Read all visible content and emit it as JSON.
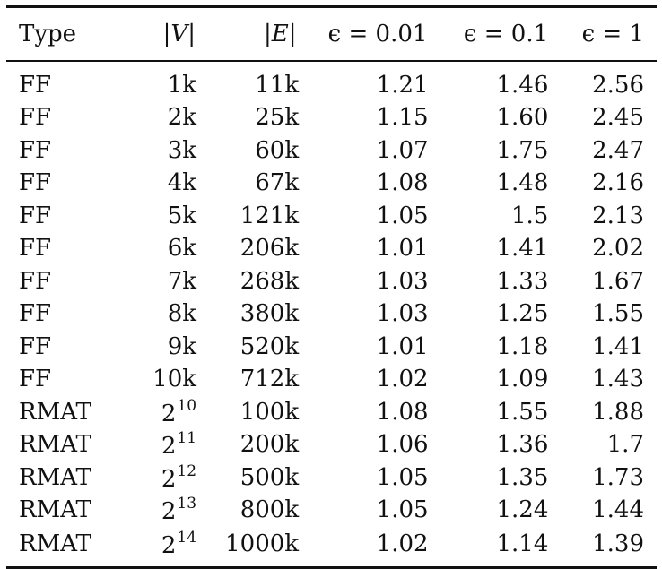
{
  "table": {
    "headers": {
      "type": "Type",
      "vertices": "|V|",
      "edges": "|E|",
      "eps1": "ϵ = 0.01",
      "eps2": "ϵ = 0.1",
      "eps3": "ϵ = 1"
    },
    "rows": [
      {
        "type": "FF",
        "v": "1k",
        "v_exp": "",
        "e": "11k",
        "r1": "1.21",
        "r2": "1.46",
        "r3": "2.56"
      },
      {
        "type": "FF",
        "v": "2k",
        "v_exp": "",
        "e": "25k",
        "r1": "1.15",
        "r2": "1.60",
        "r3": "2.45"
      },
      {
        "type": "FF",
        "v": "3k",
        "v_exp": "",
        "e": "60k",
        "r1": "1.07",
        "r2": "1.75",
        "r3": "2.47"
      },
      {
        "type": "FF",
        "v": "4k",
        "v_exp": "",
        "e": "67k",
        "r1": "1.08",
        "r2": "1.48",
        "r3": "2.16"
      },
      {
        "type": "FF",
        "v": "5k",
        "v_exp": "",
        "e": "121k",
        "r1": "1.05",
        "r2": "1.5",
        "r3": "2.13"
      },
      {
        "type": "FF",
        "v": "6k",
        "v_exp": "",
        "e": "206k",
        "r1": "1.01",
        "r2": "1.41",
        "r3": "2.02"
      },
      {
        "type": "FF",
        "v": "7k",
        "v_exp": "",
        "e": "268k",
        "r1": "1.03",
        "r2": "1.33",
        "r3": "1.67"
      },
      {
        "type": "FF",
        "v": "8k",
        "v_exp": "",
        "e": "380k",
        "r1": "1.03",
        "r2": "1.25",
        "r3": "1.55"
      },
      {
        "type": "FF",
        "v": "9k",
        "v_exp": "",
        "e": "520k",
        "r1": "1.01",
        "r2": "1.18",
        "r3": "1.41"
      },
      {
        "type": "FF",
        "v": "10k",
        "v_exp": "",
        "e": "712k",
        "r1": "1.02",
        "r2": "1.09",
        "r3": "1.43"
      },
      {
        "type": "RMAT",
        "v": "2",
        "v_exp": "10",
        "e": "100k",
        "r1": "1.08",
        "r2": "1.55",
        "r3": "1.88"
      },
      {
        "type": "RMAT",
        "v": "2",
        "v_exp": "11",
        "e": "200k",
        "r1": "1.06",
        "r2": "1.36",
        "r3": "1.7"
      },
      {
        "type": "RMAT",
        "v": "2",
        "v_exp": "12",
        "e": "500k",
        "r1": "1.05",
        "r2": "1.35",
        "r3": "1.73"
      },
      {
        "type": "RMAT",
        "v": "2",
        "v_exp": "13",
        "e": "800k",
        "r1": "1.05",
        "r2": "1.24",
        "r3": "1.44"
      },
      {
        "type": "RMAT",
        "v": "2",
        "v_exp": "14",
        "e": "1000k",
        "r1": "1.02",
        "r2": "1.14",
        "r3": "1.39"
      }
    ]
  }
}
